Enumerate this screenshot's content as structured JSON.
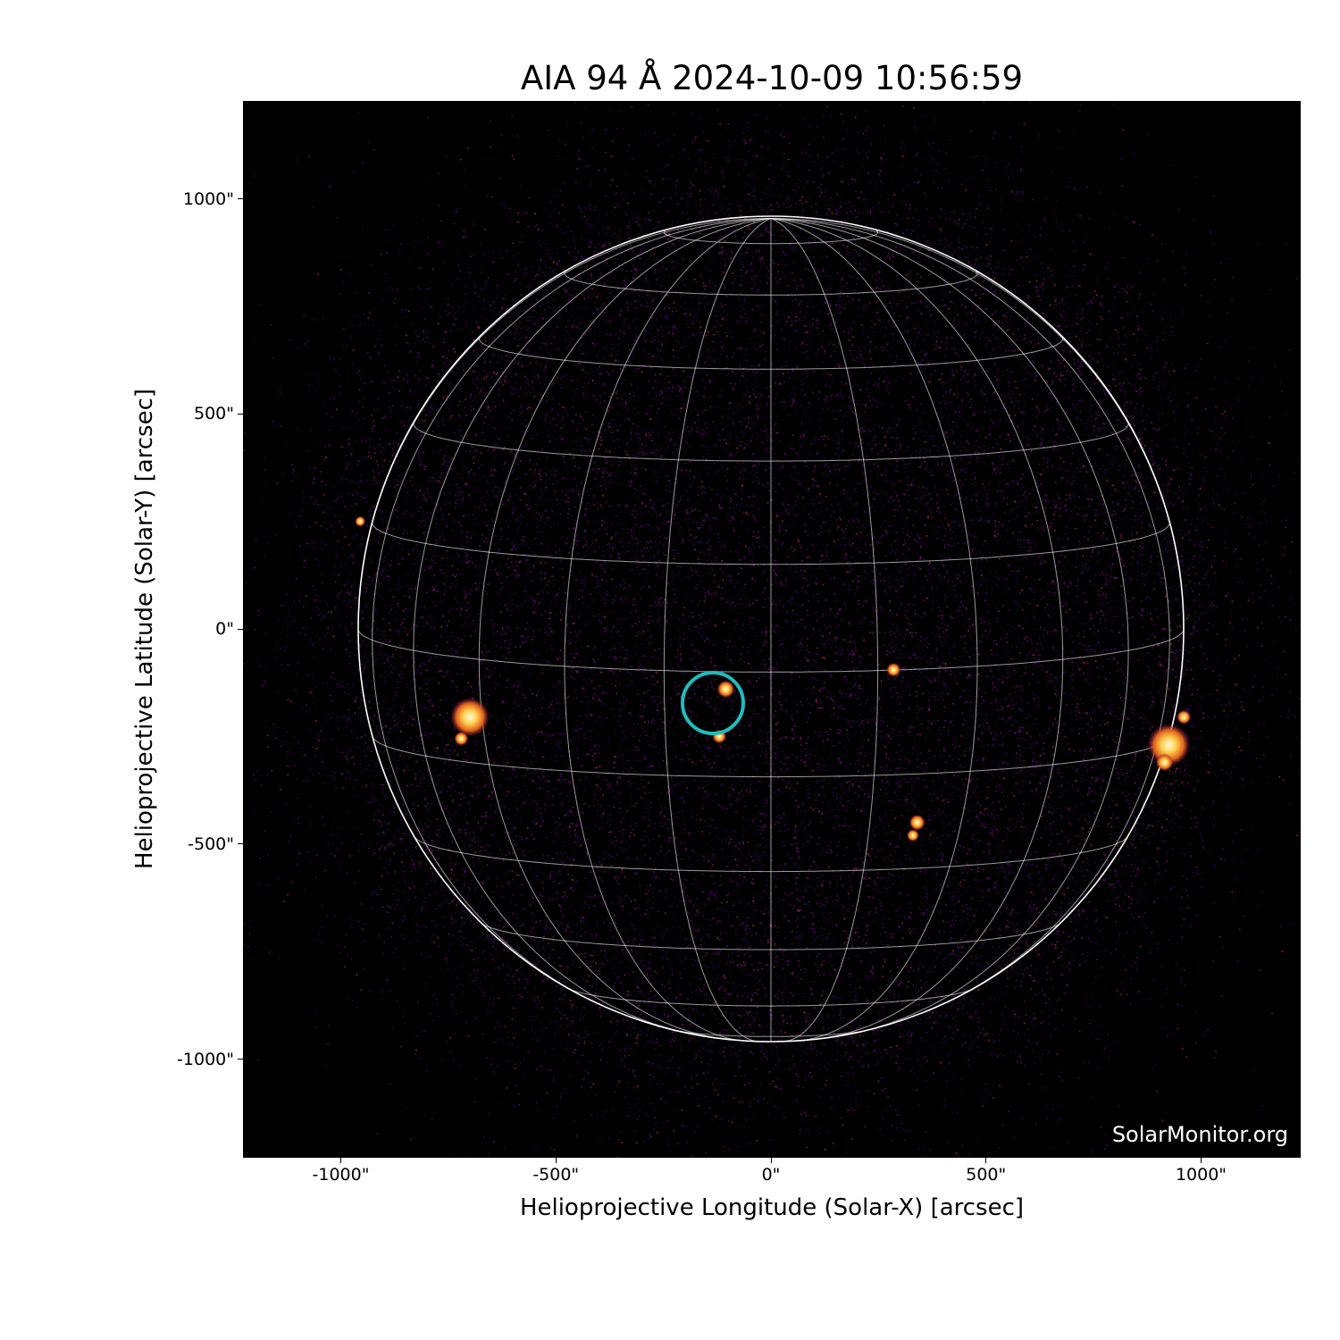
{
  "title": "AIA 94 Å 2024-10-09 10:56:59",
  "xlabel": "Helioprojective Longitude (Solar-X) [arcsec]",
  "ylabel": "Helioprojective Latitude (Solar-Y) [arcsec]",
  "x_ticks": [
    "-1000\"",
    "-500\"",
    "0\"",
    "500\"",
    "1000\""
  ],
  "y_ticks": [
    "1000\"",
    "500\"",
    "0\"",
    "-500\"",
    "-1000\""
  ],
  "watermark": "SolarMonitor.org",
  "colormap": "inferno-like (black-purple-orange-yellow)",
  "grid": "heliographic, 15° spacing",
  "highlight_circle_color": "#1fbdbd"
}
